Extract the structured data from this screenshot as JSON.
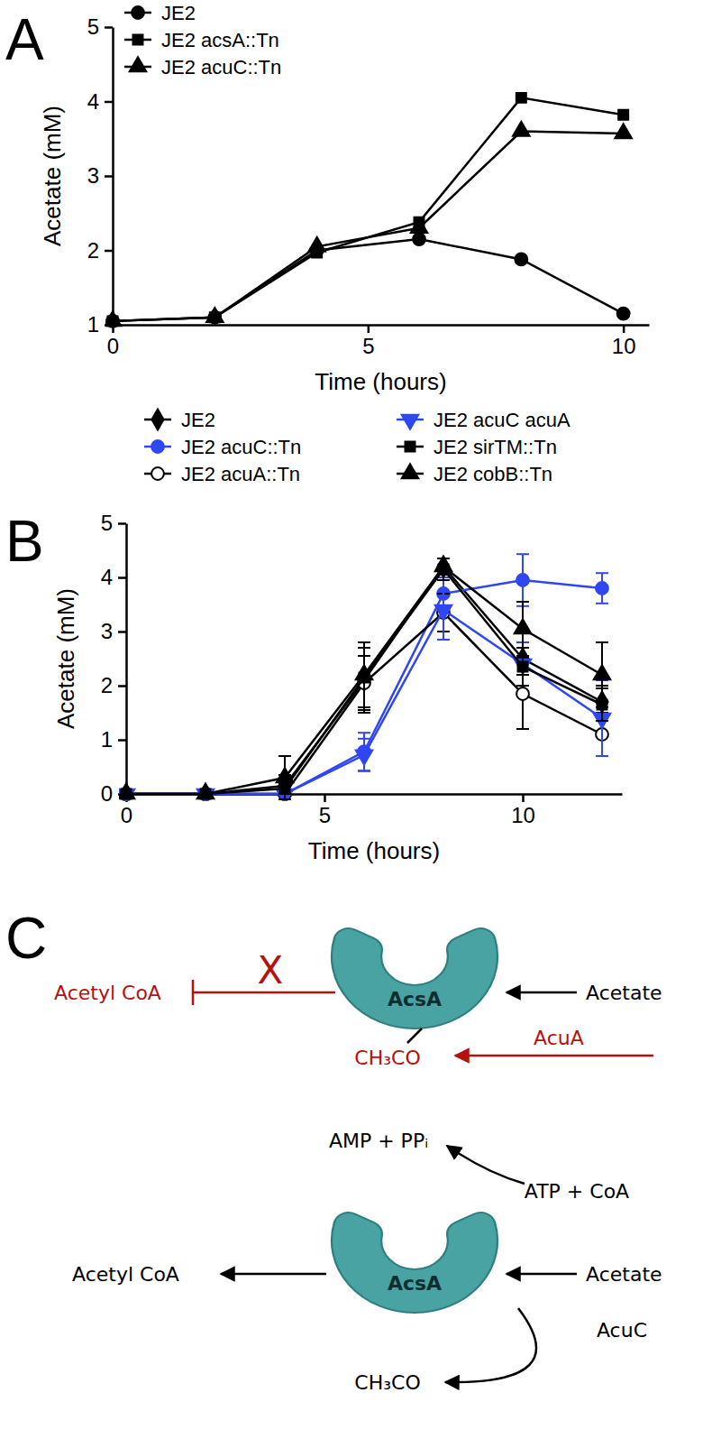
{
  "panels": [
    "A",
    "B",
    "C"
  ],
  "chart_data": [
    {
      "type": "line",
      "xlabel": "Time (hours)",
      "ylabel": "Acetate (mM)",
      "xlim": [
        0,
        10.5
      ],
      "ylim": [
        1,
        5
      ],
      "xticks": [
        0,
        5,
        10
      ],
      "yticks": [
        1,
        2,
        3,
        4,
        5
      ],
      "legend": "top-left",
      "x": [
        0,
        2,
        4,
        6,
        8,
        10
      ],
      "series": [
        {
          "name": "JE2",
          "color": "#000000",
          "marker": "circle",
          "values": [
            1.05,
            1.1,
            2.0,
            2.15,
            1.88,
            1.15
          ]
        },
        {
          "name": "JE2 acsA::Tn",
          "color": "#000000",
          "marker": "square",
          "values": [
            1.05,
            1.1,
            1.97,
            2.38,
            4.05,
            3.82
          ]
        },
        {
          "name": "JE2 acuC::Tn",
          "color": "#000000",
          "marker": "triangle",
          "values": [
            1.05,
            1.1,
            2.05,
            2.3,
            3.6,
            3.57
          ]
        }
      ]
    },
    {
      "type": "line",
      "xlabel": "Time (hours)",
      "ylabel": "Acetate (mM)",
      "xlim": [
        0,
        12.5
      ],
      "ylim": [
        0,
        5
      ],
      "xticks": [
        0,
        5,
        10
      ],
      "yticks": [
        0,
        1,
        2,
        3,
        4,
        5
      ],
      "legend": "top",
      "x": [
        0,
        2,
        4,
        6,
        8,
        10,
        12
      ],
      "series": [
        {
          "name": "JE2",
          "color": "#000000",
          "marker": "diamond",
          "values": [
            0,
            0,
            0.15,
            2.1,
            4.2,
            2.5,
            1.7
          ],
          "errors": [
            0,
            0,
            0.2,
            0.6,
            0.15,
            0.3,
            0.3
          ]
        },
        {
          "name": "JE2 acuC::Tn",
          "color": "#2f46f5",
          "marker": "circle",
          "values": [
            0,
            0,
            0,
            0.78,
            3.7,
            3.95,
            3.8
          ],
          "errors": [
            0,
            0,
            0,
            0.35,
            0.3,
            0.48,
            0.28
          ]
        },
        {
          "name": "JE2 acuA::Tn",
          "color": "#000000",
          "marker": "circle-open",
          "values": [
            0,
            0,
            0,
            2.05,
            3.35,
            1.85,
            1.1
          ],
          "errors": [
            0,
            0,
            0,
            0.5,
            0.35,
            0.65,
            0.4
          ]
        },
        {
          "name": "JE2 acuC acuA",
          "color": "#2f46f5",
          "marker": "triangle-down",
          "values": [
            0,
            0,
            0,
            0.72,
            3.4,
            2.4,
            1.4
          ],
          "errors": [
            0,
            0,
            0,
            0.3,
            0.55,
            0.4,
            0.7
          ]
        },
        {
          "name": "JE2 sirTM::Tn",
          "color": "#000000",
          "marker": "square",
          "values": [
            0,
            0,
            0.1,
            2.15,
            4.15,
            2.35,
            1.65
          ],
          "errors": [
            0,
            0,
            0.1,
            0.55,
            0.2,
            0.35,
            0.3
          ]
        },
        {
          "name": "JE2 cobB::Tn",
          "color": "#000000",
          "marker": "triangle",
          "values": [
            0,
            0,
            0.3,
            2.2,
            4.2,
            3.05,
            2.2
          ],
          "errors": [
            0,
            0,
            0.4,
            0.6,
            0.15,
            0.5,
            0.6
          ]
        }
      ]
    }
  ],
  "diagram": {
    "top": {
      "product": "Acetyl CoA",
      "blocked": "X",
      "enzyme": "AcsA",
      "substrate": "Acetate",
      "modification": "CH₃CO",
      "modifier": "AcuA"
    },
    "bottom": {
      "product": "Acetyl CoA",
      "enzyme": "AcsA",
      "substrate": "Acetate",
      "cofactor_out": "AMP + PPᵢ",
      "cofactor_in": "ATP + CoA",
      "modifier": "AcuC",
      "removed": "CH₃CO"
    }
  }
}
